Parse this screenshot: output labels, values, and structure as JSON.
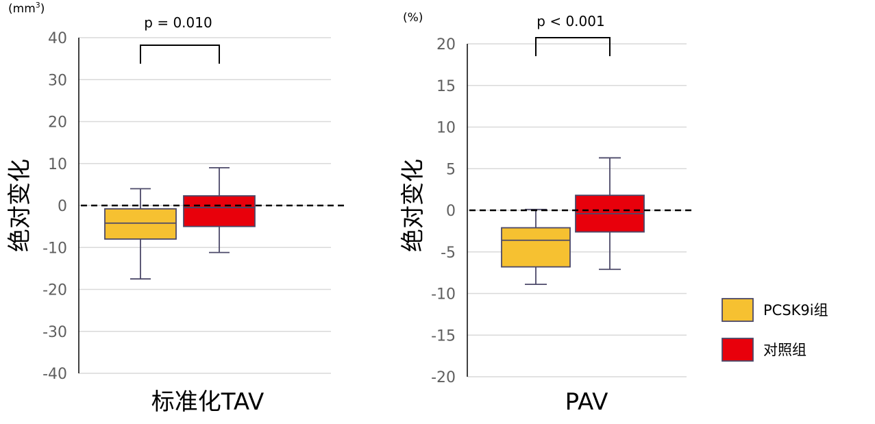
{
  "chart_data": [
    {
      "type": "box",
      "unit": "(mm",
      "unit_sup": "3",
      "unit_close": ")",
      "ylabel": "绝对变化",
      "xlabel": "标准化TAV",
      "ylim": [
        -40,
        40
      ],
      "yticks": [
        40,
        30,
        20,
        10,
        0,
        -10,
        -20,
        -30,
        -40
      ],
      "grid": true,
      "reference_line": 0,
      "p_value": "p = 0.010",
      "series": [
        {
          "name": "PCSK9i组",
          "whisker_low": -17.5,
          "q1": -8,
          "median": -4.2,
          "q3": -0.8,
          "whisker_high": 4,
          "color": "#f6c131"
        },
        {
          "name": "对照组",
          "whisker_low": -11.2,
          "q1": -5,
          "median": -0.5,
          "q3": 2.3,
          "whisker_high": 9,
          "color": "#e8000b"
        }
      ]
    },
    {
      "type": "box",
      "unit": "(%)",
      "ylabel": "绝对变化",
      "xlabel": "PAV",
      "ylim": [
        -20,
        20
      ],
      "yticks": [
        20,
        15,
        10,
        5,
        0,
        -5,
        -10,
        -15,
        -20
      ],
      "grid": true,
      "reference_line": 0,
      "p_value": "p < 0.001",
      "series": [
        {
          "name": "PCSK9i组",
          "whisker_low": -8.9,
          "q1": -6.8,
          "median": -3.6,
          "q3": -2.1,
          "whisker_high": 0.1,
          "color": "#f6c131"
        },
        {
          "name": "对照组",
          "whisker_low": -7.1,
          "q1": -2.6,
          "median": -0.4,
          "q3": 1.8,
          "whisker_high": 6.3,
          "color": "#e8000b"
        }
      ]
    }
  ],
  "legend": {
    "placement": "right",
    "items": [
      {
        "label": "PCSK9i组",
        "color": "#f6c131"
      },
      {
        "label": "对照组",
        "color": "#e8000b"
      }
    ]
  },
  "colors": {
    "box_stroke": "#4b4868",
    "grid": "#d9d9d9",
    "axis": "#000000"
  }
}
